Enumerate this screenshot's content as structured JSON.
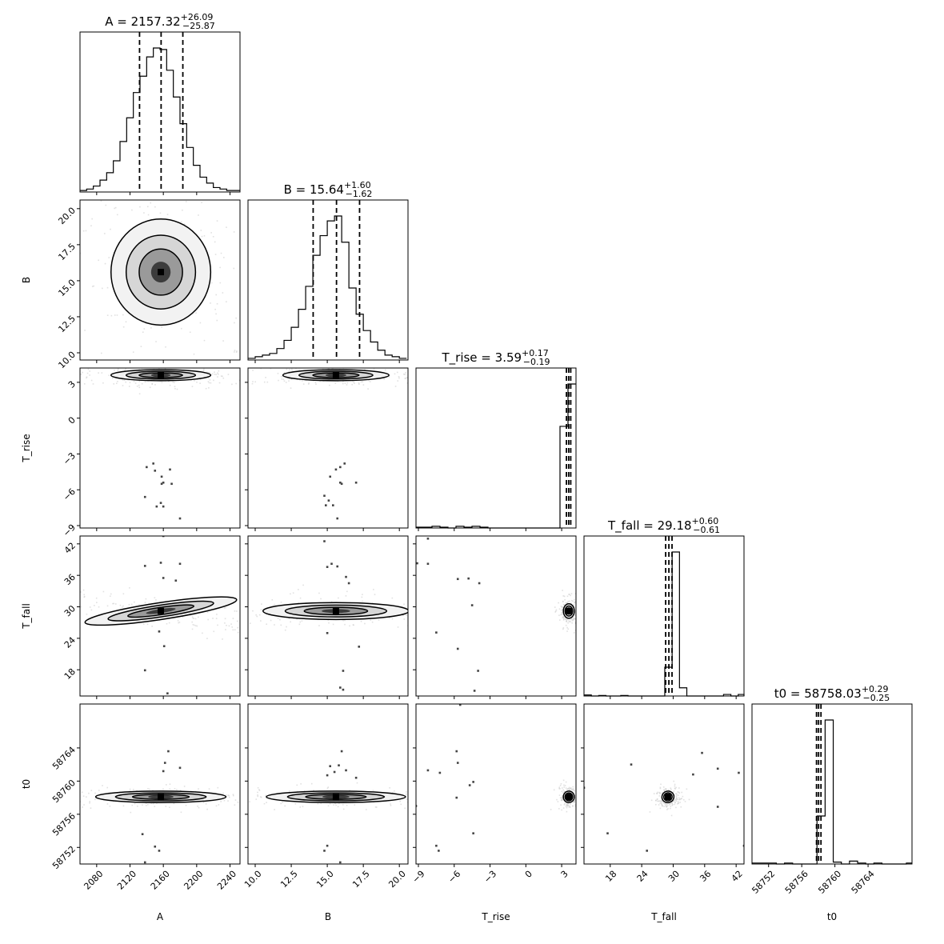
{
  "chart_data": {
    "type": "corner",
    "parameters": [
      {
        "name": "A",
        "axis_label": "A",
        "title": {
          "text": "A = 2157.32",
          "plus": "+26.09",
          "minus": "−25.87"
        },
        "median": 2157.32,
        "err_plus": 26.09,
        "err_minus": 25.87,
        "range": [
          2060,
          2252
        ],
        "ticks": [
          2080,
          2120,
          2160,
          2200,
          2240
        ],
        "tick_labels": [
          "2080",
          "2120",
          "2160",
          "2200",
          "2240"
        ],
        "hist": {
          "edges_start": 2060,
          "bin_width": 8,
          "counts": [
            1,
            2,
            4,
            8,
            13,
            21,
            34,
            50,
            67,
            78,
            91,
            97,
            96,
            82,
            64,
            46,
            30,
            18,
            10,
            6,
            3,
            2,
            1,
            1
          ]
        }
      },
      {
        "name": "B",
        "axis_label": "B",
        "title": {
          "text": "B = 15.64",
          "plus": "+1.60",
          "minus": "−1.62"
        },
        "median": 15.64,
        "err_plus": 1.6,
        "err_minus": 1.62,
        "range": [
          9.5,
          20.6
        ],
        "ticks": [
          10.0,
          12.5,
          15.0,
          17.5,
          20.0
        ],
        "tick_labels": [
          "10.0",
          "12.5",
          "15.0",
          "17.5",
          "20.0"
        ],
        "hist": {
          "edges_start": 9.5,
          "bin_width": 0.5,
          "counts": [
            1,
            2,
            3,
            4,
            7,
            12,
            20,
            31,
            45,
            64,
            76,
            85,
            88,
            72,
            44,
            28,
            18,
            11,
            6,
            3,
            2,
            1
          ]
        }
      },
      {
        "name": "T_rise",
        "axis_label": "T_rise",
        "title": {
          "text": "T_rise = 3.59",
          "plus": "+0.17",
          "minus": "−0.19"
        },
        "median": 3.59,
        "err_plus": 0.17,
        "err_minus": 0.19,
        "range": [
          -9.2,
          4.2
        ],
        "ticks": [
          -9,
          -6,
          -3,
          0,
          3
        ],
        "tick_labels": [
          "−9",
          "−6",
          "−3",
          "0",
          "3"
        ],
        "hist": {
          "edges_start": -9.2,
          "bin_width": 0.67,
          "counts": [
            1,
            1,
            2,
            1,
            0,
            2,
            1,
            2,
            1,
            0,
            0,
            0,
            0,
            0,
            0,
            0,
            0,
            0,
            120,
            170
          ]
        }
      },
      {
        "name": "T_fall",
        "axis_label": "T_fall",
        "title": {
          "text": "T_fall = 29.18",
          "plus": "+0.60",
          "minus": "−0.61"
        },
        "median": 29.18,
        "err_plus": 0.6,
        "err_minus": 0.61,
        "range": [
          13,
          43.5
        ],
        "ticks": [
          18,
          24,
          30,
          36,
          42
        ],
        "tick_labels": [
          "18",
          "24",
          "30",
          "36",
          "42"
        ],
        "hist": {
          "edges_start": 13,
          "bin_width": 1.4,
          "counts": [
            1,
            0,
            0.5,
            0,
            0,
            0.5,
            0,
            0,
            0,
            0,
            0,
            28,
            140,
            8,
            0,
            0,
            0,
            0,
            0,
            1.5,
            0,
            1.5,
            0,
            0,
            0,
            0,
            1,
            0,
            1
          ]
        }
      },
      {
        "name": "t0",
        "axis_label": "t0",
        "title": {
          "text": "t0 = 58758.03",
          "plus": "+0.29",
          "minus": "−0.25"
        },
        "median": 58758.03,
        "err_plus": 0.29,
        "err_minus": 0.25,
        "range": [
          58750,
          58769.3
        ],
        "ticks": [
          58752,
          58756,
          58760,
          58764
        ],
        "tick_labels": [
          "58752",
          "58756",
          "58760",
          "58764"
        ],
        "hist": {
          "edges_start": 58750,
          "bin_width": 0.98,
          "counts": [
            1,
            1,
            1,
            0,
            1,
            0,
            0,
            0,
            50,
            150,
            2,
            0,
            3,
            1,
            0,
            1,
            0,
            0,
            0,
            1
          ]
        }
      }
    ],
    "panels_2d": [
      {
        "x": "A",
        "y": "B",
        "center": [
          2157,
          15.6
        ],
        "spread": [
          26,
          1.6
        ],
        "tilt": 0,
        "isolated_points": []
      },
      {
        "x": "A",
        "y": "T_rise",
        "center": [
          2157,
          3.6
        ],
        "spread": [
          26,
          0.2
        ],
        "tilt": 0,
        "isolated_points": [
          [
            2140,
            -4.1
          ],
          [
            2148,
            -3.8
          ],
          [
            2150,
            -4.4
          ],
          [
            2168,
            -4.3
          ],
          [
            2158,
            -4.9
          ],
          [
            2160,
            -5.4
          ],
          [
            2158,
            -5.5
          ],
          [
            2170,
            -5.5
          ],
          [
            2138,
            -6.6
          ],
          [
            2152,
            -7.4
          ],
          [
            2160,
            -7.4
          ],
          [
            2157,
            -7.1
          ],
          [
            2180,
            -8.4
          ]
        ]
      },
      {
        "x": "B",
        "y": "T_rise",
        "center": [
          15.6,
          3.6
        ],
        "spread": [
          1.6,
          0.2
        ],
        "tilt": 0,
        "isolated_points": [
          [
            16.2,
            -3.8
          ],
          [
            15.9,
            -4.1
          ],
          [
            15.6,
            -4.3
          ],
          [
            15.2,
            -4.9
          ],
          [
            15.9,
            -5.4
          ],
          [
            16.0,
            -5.5
          ],
          [
            17.0,
            -5.4
          ],
          [
            14.8,
            -6.5
          ],
          [
            14.9,
            -7.3
          ],
          [
            15.1,
            -6.9
          ],
          [
            15.4,
            -7.3
          ],
          [
            15.7,
            -8.4
          ]
        ]
      },
      {
        "x": "A",
        "y": "T_fall",
        "center": [
          2157,
          29.2
        ],
        "spread": [
          40,
          0.7
        ],
        "tilt": -0.15,
        "isolated_points": [
          [
            2160,
            43.5
          ],
          [
            2138,
            37.8
          ],
          [
            2157,
            38.4
          ],
          [
            2180,
            38.2
          ],
          [
            2160,
            35.5
          ],
          [
            2175,
            35.0
          ],
          [
            2155,
            25.3
          ],
          [
            2161,
            22.5
          ],
          [
            2138,
            17.9
          ],
          [
            2165,
            13.5
          ]
        ]
      },
      {
        "x": "B",
        "y": "T_fall",
        "center": [
          15.6,
          29.2
        ],
        "spread": [
          2.2,
          0.7
        ],
        "tilt": 0,
        "isolated_points": [
          [
            14.8,
            42.5
          ],
          [
            15.3,
            38.2
          ],
          [
            15.0,
            37.6
          ],
          [
            15.7,
            37.7
          ],
          [
            16.3,
            35.7
          ],
          [
            16.5,
            34.5
          ],
          [
            15.0,
            25.0
          ],
          [
            17.2,
            22.4
          ],
          [
            16.1,
            17.8
          ],
          [
            15.9,
            14.6
          ],
          [
            16.1,
            14.2
          ]
        ]
      },
      {
        "x": "T_rise",
        "y": "T_fall",
        "center": [
          3.6,
          29.2
        ],
        "spread": [
          0.2,
          0.6
        ],
        "tilt": 0,
        "isolated_points": [
          [
            -8.2,
            43.0
          ],
          [
            -9.1,
            38.3
          ],
          [
            -8.2,
            38.2
          ],
          [
            -5.7,
            35.3
          ],
          [
            -4.8,
            35.4
          ],
          [
            -3.9,
            34.5
          ],
          [
            -4.5,
            30.3
          ],
          [
            -7.5,
            25.1
          ],
          [
            -5.7,
            22.0
          ],
          [
            -4.0,
            17.8
          ],
          [
            -4.3,
            14.0
          ]
        ]
      },
      {
        "x": "A",
        "y": "t0",
        "center": [
          2157,
          58758.1
        ],
        "spread": [
          34,
          0.3
        ],
        "tilt": 0,
        "isolated_points": [
          [
            2166,
            58763.6
          ],
          [
            2162,
            58762.2
          ],
          [
            2180,
            58761.6
          ],
          [
            2160,
            58761.2
          ],
          [
            2135,
            58753.6
          ],
          [
            2150,
            58752.1
          ],
          [
            2155,
            58751.6
          ],
          [
            2138,
            58750.2
          ]
        ]
      },
      {
        "x": "B",
        "y": "t0",
        "center": [
          15.6,
          58758.1
        ],
        "spread": [
          2.1,
          0.3
        ],
        "tilt": 0,
        "isolated_points": [
          [
            16.0,
            58763.6
          ],
          [
            15.2,
            58761.8
          ],
          [
            15.8,
            58761.9
          ],
          [
            16.3,
            58761.3
          ],
          [
            15.5,
            58761.1
          ],
          [
            15.0,
            58760.7
          ],
          [
            17.0,
            58760.4
          ],
          [
            15.0,
            58752.2
          ],
          [
            14.8,
            58751.6
          ],
          [
            15.9,
            58750.2
          ]
        ]
      },
      {
        "x": "T_rise",
        "y": "t0",
        "center": [
          3.6,
          58758.1
        ],
        "spread": [
          0.2,
          0.3
        ],
        "tilt": 0,
        "isolated_points": [
          [
            -5.8,
            58763.6
          ],
          [
            -5.7,
            58762.2
          ],
          [
            -8.2,
            58761.3
          ],
          [
            -7.2,
            58761.0
          ],
          [
            -4.7,
            58759.5
          ],
          [
            -4.4,
            58759.9
          ],
          [
            -5.8,
            58758.0
          ],
          [
            -9.2,
            58757.0
          ],
          [
            -4.4,
            58753.7
          ],
          [
            -7.5,
            58752.2
          ],
          [
            -7.3,
            58751.6
          ],
          [
            -5.5,
            58769.2
          ]
        ]
      },
      {
        "x": "T_fall",
        "y": "t0",
        "center": [
          29.0,
          58758.1
        ],
        "spread": [
          0.5,
          0.3
        ],
        "tilt": -0.4,
        "isolated_points": [
          [
            13.0,
            58759.2
          ],
          [
            22.0,
            58762.0
          ],
          [
            33.8,
            58760.8
          ],
          [
            35.5,
            58763.4
          ],
          [
            38.5,
            58761.5
          ],
          [
            42.5,
            58761.0
          ],
          [
            38.5,
            58756.9
          ],
          [
            17.5,
            58753.7
          ],
          [
            25.0,
            58751.6
          ],
          [
            43.5,
            58752.2
          ]
        ]
      }
    ]
  }
}
